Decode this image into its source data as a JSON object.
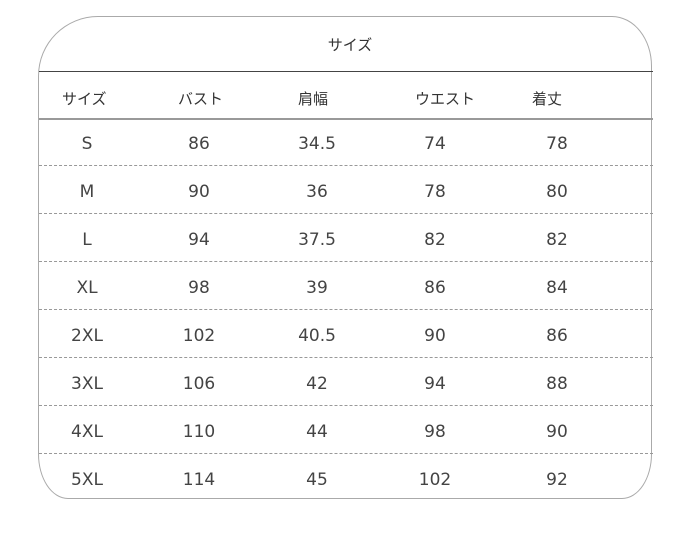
{
  "title": "サイズ",
  "headers": [
    "サイズ",
    "バスト",
    "肩幅",
    "ウエスト",
    "着丈"
  ],
  "rows": [
    [
      "S",
      "86",
      "34.5",
      "74",
      "78"
    ],
    [
      "M",
      "90",
      "36",
      "78",
      "80"
    ],
    [
      "L",
      "94",
      "37.5",
      "82",
      "82"
    ],
    [
      "XL",
      "98",
      "39",
      "86",
      "84"
    ],
    [
      "2XL",
      "102",
      "40.5",
      "90",
      "86"
    ],
    [
      "3XL",
      "106",
      "42",
      "94",
      "88"
    ],
    [
      "4XL",
      "110",
      "44",
      "98",
      "90"
    ],
    [
      "5XL",
      "114",
      "45",
      "102",
      "92"
    ]
  ]
}
